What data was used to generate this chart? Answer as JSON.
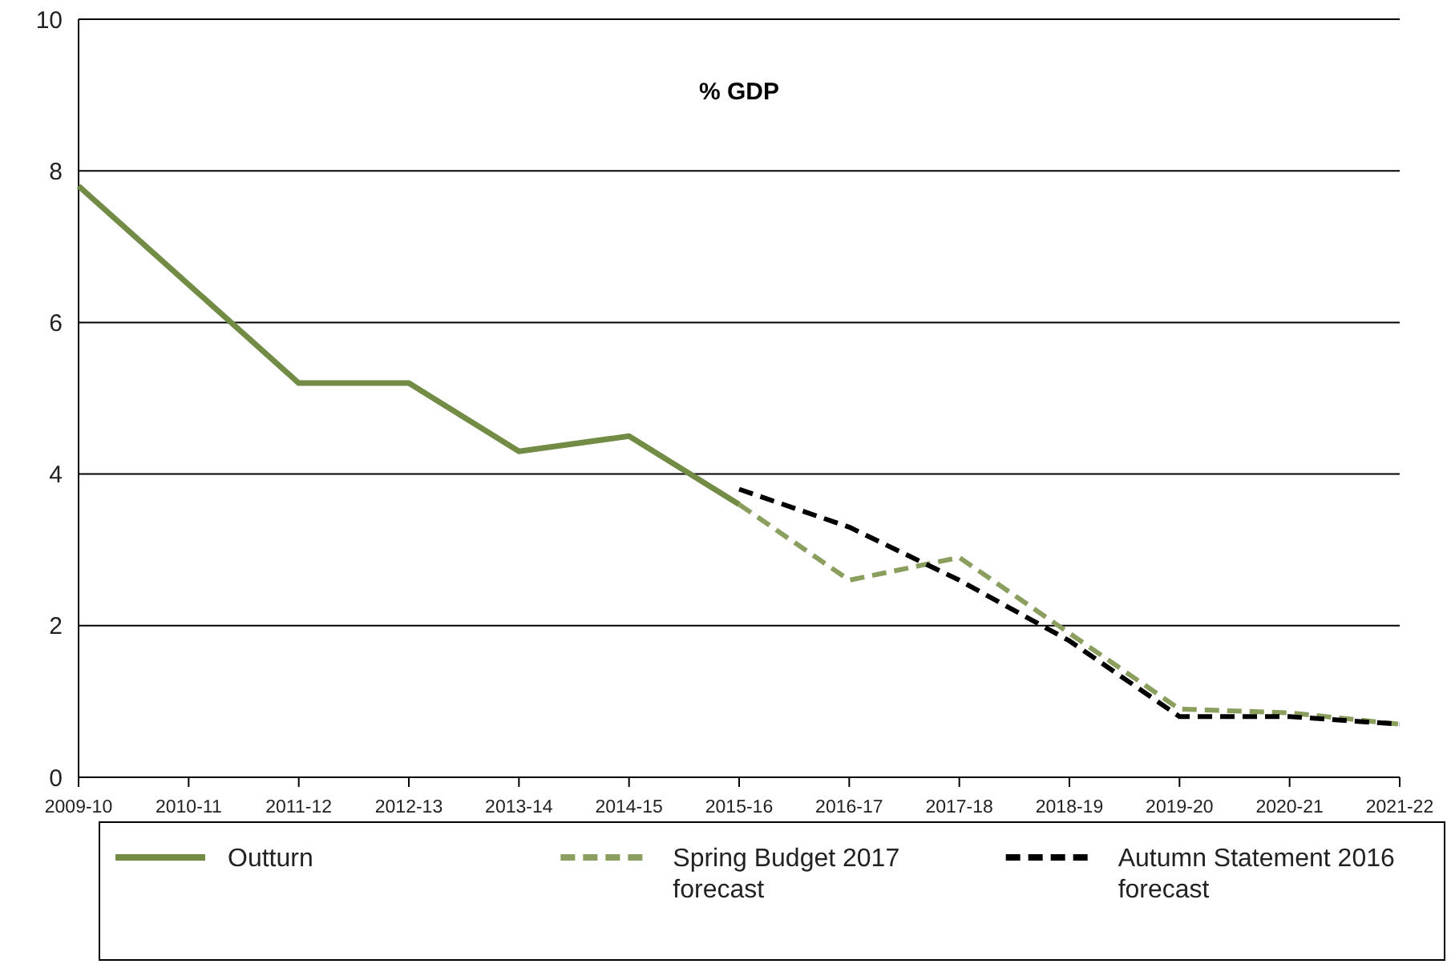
{
  "chart_data": {
    "type": "line",
    "title": "% GDP",
    "categories": [
      "2009-10",
      "2010-11",
      "2011-12",
      "2012-13",
      "2013-14",
      "2014-15",
      "2015-16",
      "2016-17",
      "2017-18",
      "2018-19",
      "2019-20",
      "2020-21",
      "2021-22"
    ],
    "series": [
      {
        "name": "Outturn",
        "color": "#728c45",
        "line_style": "solid",
        "values": [
          7.8,
          6.5,
          5.2,
          5.2,
          4.3,
          4.5,
          3.6,
          null,
          null,
          null,
          null,
          null,
          null
        ]
      },
      {
        "name": "Spring Budget 2017 forecast",
        "color": "#8a9f5e",
        "line_style": "dashed",
        "values": [
          null,
          null,
          null,
          null,
          null,
          null,
          3.6,
          2.6,
          2.9,
          1.9,
          0.9,
          0.85,
          0.7
        ]
      },
      {
        "name": "Autumn Statement 2016 forecast",
        "color": "#000000",
        "line_style": "dashed",
        "values": [
          null,
          null,
          null,
          null,
          null,
          null,
          3.8,
          3.3,
          2.6,
          1.8,
          0.8,
          0.8,
          0.7
        ]
      }
    ],
    "ylim": [
      0,
      10
    ],
    "yticks": [
      0,
      2,
      4,
      6,
      8,
      10
    ],
    "grid": "y",
    "legend": "bottom"
  }
}
